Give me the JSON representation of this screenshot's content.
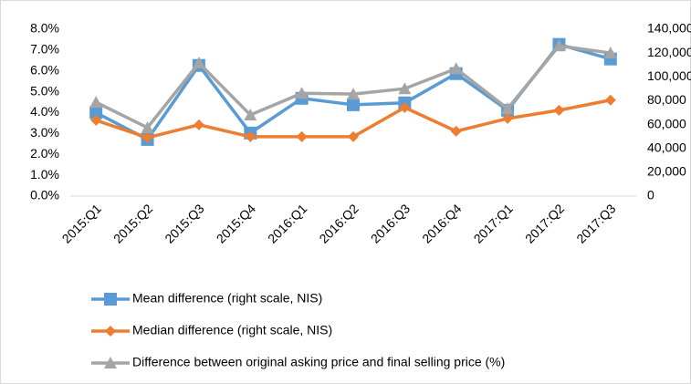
{
  "chart_data": {
    "type": "line",
    "categories": [
      "2015:Q1",
      "2015:Q2",
      "2015:Q3",
      "2015:Q4",
      "2016:Q1",
      "2016:Q2",
      "2016:Q3",
      "2016:Q4",
      "2017:Q1",
      "2017:Q2",
      "2017:Q3"
    ],
    "series": [
      {
        "name": "Mean difference (right scale, NIS)",
        "color": "#5b9bd5",
        "marker": "square",
        "axis": "y2",
        "values": [
          70000,
          47500,
          109600,
          52900,
          82000,
          76600,
          78200,
          102700,
          72000,
          127200,
          115000
        ]
      },
      {
        "name": "Median difference (right scale, NIS)",
        "color": "#ed7d31",
        "marker": "diamond",
        "axis": "y2",
        "values": [
          63600,
          49000,
          59800,
          49800,
          49800,
          49800,
          74300,
          54400,
          65100,
          72000,
          80500
        ]
      },
      {
        "name": "Difference between original asking price and final selling price (%)",
        "color": "#a5a5a5",
        "marker": "triangle",
        "axis": "y",
        "values": [
          4.5,
          3.28,
          6.38,
          3.89,
          4.93,
          4.89,
          5.15,
          6.11,
          4.19,
          7.2,
          6.86
        ]
      }
    ],
    "ylim": [
      0,
      8
    ],
    "yticks": [
      {
        "value": 0,
        "label": "0.0%"
      },
      {
        "value": 1,
        "label": "1.0%"
      },
      {
        "value": 2,
        "label": "2.0%"
      },
      {
        "value": 3,
        "label": "3.0%"
      },
      {
        "value": 4,
        "label": "4.0%"
      },
      {
        "value": 5,
        "label": "5.0%"
      },
      {
        "value": 6,
        "label": "6.0%"
      },
      {
        "value": 7,
        "label": "7.0%"
      },
      {
        "value": 8,
        "label": "8.0%"
      }
    ],
    "y2lim": [
      0,
      140000
    ],
    "y2ticks": [
      0,
      {
        "value": 20000,
        "label": "20,000"
      },
      {
        "value": 40000,
        "label": "40,000"
      },
      {
        "value": 60000,
        "label": "60,000"
      },
      {
        "value": 80000,
        "label": "80,000"
      },
      {
        "value": 100000,
        "label": "100,000"
      },
      {
        "value": 120000,
        "label": "120,000"
      },
      {
        "value": 140000,
        "label": "140,000"
      }
    ],
    "grid": false,
    "legend": "bottom"
  }
}
